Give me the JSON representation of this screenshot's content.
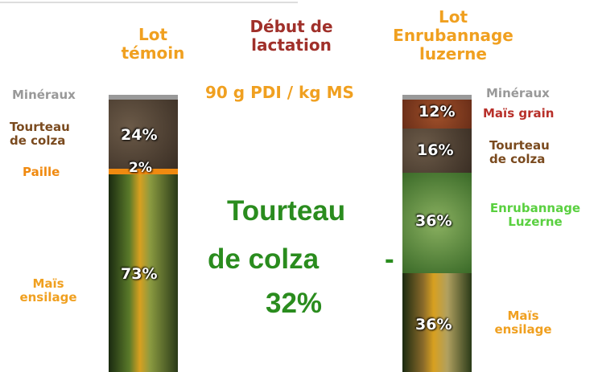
{
  "header": {
    "left_lot": [
      "Lot",
      "témoin"
    ],
    "center": [
      "Début de",
      "lactation"
    ],
    "right_lot": [
      "Lot",
      "Enrubannage",
      "luzerne"
    ],
    "subtitle": "90 g PDI / kg MS"
  },
  "left_ration": {
    "labels": {
      "mineraux": "Minéraux",
      "tourteau": [
        "Tourteau",
        "de colza"
      ],
      "paille": "Paille",
      "mais": [
        "Maïs",
        "ensilage"
      ]
    },
    "percents": {
      "tourteau": "24%",
      "paille": "2%",
      "mais": "73%"
    }
  },
  "right_ration": {
    "labels": {
      "mineraux": "Minéraux",
      "mais_grain": "Maïs grain",
      "tourteau": [
        "Tourteau",
        "de colza"
      ],
      "enrubannage": [
        "Enrubannage",
        "Luzerne"
      ],
      "mais": [
        "Maïs",
        "ensilage"
      ]
    },
    "percents": {
      "mais_grain": "12%",
      "tourteau": "16%",
      "enrubannage": "36%",
      "mais": "36%"
    }
  },
  "callout": {
    "lines": [
      "Tourteau",
      "de colza"
    ],
    "dash": "-",
    "value": "32%"
  }
}
